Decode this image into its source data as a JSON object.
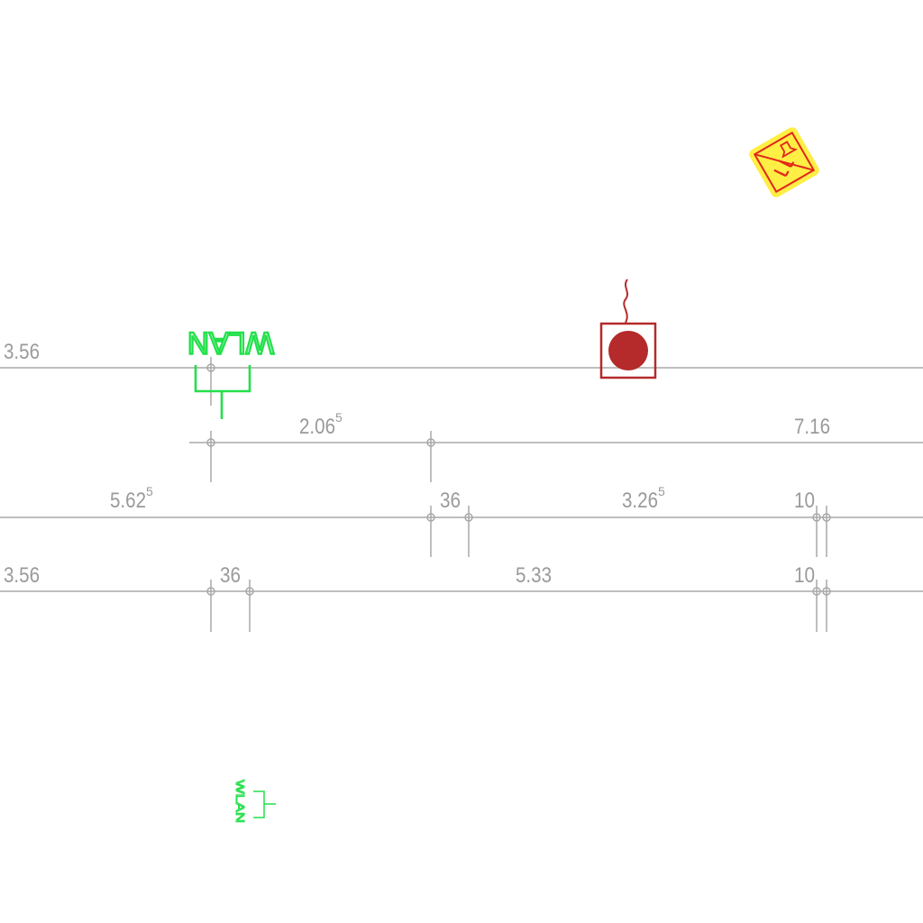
{
  "dimension_rows": [
    {
      "labels": [
        {
          "text": "3.56"
        }
      ]
    },
    {
      "labels": [
        {
          "text": "2.06",
          "sup": "5"
        },
        {
          "text": "7.16"
        }
      ]
    },
    {
      "labels": [
        {
          "text": "5.62",
          "sup": "5"
        },
        {
          "text": "36"
        },
        {
          "text": "3.26",
          "sup": "5"
        },
        {
          "text": "10"
        }
      ]
    },
    {
      "labels": [
        {
          "text": "3.56"
        },
        {
          "text": "36"
        },
        {
          "text": "5.33"
        },
        {
          "text": "10"
        }
      ]
    }
  ],
  "symbols": {
    "wlan_large": {
      "label": "WLAN",
      "icon": "wlan-access-point-icon",
      "color": "#22e04a"
    },
    "wlan_small": {
      "label": "WLAN",
      "icon": "wlan-access-point-icon",
      "color": "#22e04a"
    },
    "smoke_detector": {
      "icon": "smoke-detector-icon",
      "color": "#b52a2a"
    },
    "warning_sign": {
      "icon": "warning-sign-icon",
      "fill": "#ffee44",
      "stroke": "#e2261b"
    }
  },
  "colors": {
    "dimension_line": "#a8a8a8",
    "dimension_text": "#9a9a9a",
    "background": "#ffffff"
  }
}
